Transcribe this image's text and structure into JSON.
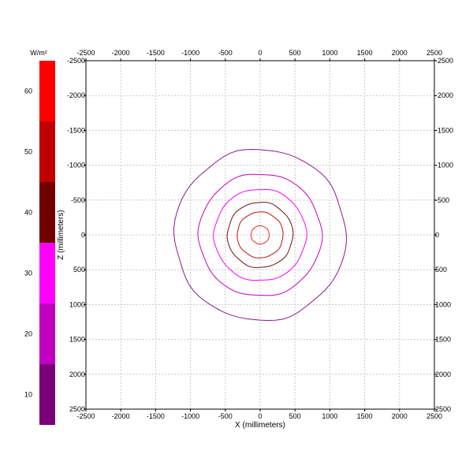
{
  "chart_data": {
    "type": "contour",
    "xlabel": "X (millimeters)",
    "ylabel": "Z (millimeters)",
    "xlim": [
      -2500,
      2500
    ],
    "ylim": [
      -2500,
      2500
    ],
    "y_axis_inverted": true,
    "x_ticks": [
      -2500,
      -2000,
      -1500,
      -1000,
      -500,
      0,
      500,
      1000,
      1500,
      2000,
      2500
    ],
    "y_ticks": [
      -2500,
      -2000,
      -1500,
      -1000,
      -500,
      0,
      500,
      1000,
      1500,
      2000,
      2500
    ],
    "x_tick_labels": [
      "-2500",
      "-2000",
      "-1500",
      "-1000",
      "-500",
      "0",
      "500",
      "1000",
      "1500",
      "2000",
      "2500"
    ],
    "y_tick_labels": [
      "-2500",
      "-2000",
      "-1500",
      "-1000",
      "-500",
      "0",
      "500",
      "1000",
      "1500",
      "2000",
      "2500"
    ],
    "grid": true,
    "center": [
      0,
      0
    ],
    "contours": [
      {
        "radius": 1230,
        "color": "#8b1a8b"
      },
      {
        "radius": 880,
        "color": "#c400c4"
      },
      {
        "radius": 660,
        "color": "#ff00ff"
      },
      {
        "radius": 470,
        "color": "#701010"
      },
      {
        "radius": 330,
        "color": "#c01010"
      },
      {
        "radius": 130,
        "color": "#ff2020"
      }
    ],
    "colorbar": {
      "units": "W/m²",
      "min": 5,
      "max": 65,
      "tick_values": [
        10,
        20,
        30,
        40,
        50,
        60
      ],
      "tick_labels": [
        "10",
        "20",
        "30",
        "40",
        "50",
        "60"
      ],
      "bands": [
        {
          "from": 5,
          "to": 15,
          "color": "#7a007a"
        },
        {
          "from": 15,
          "to": 25,
          "color": "#c000c0"
        },
        {
          "from": 25,
          "to": 35,
          "color": "#ff00ff"
        },
        {
          "from": 35,
          "to": 45,
          "color": "#700000"
        },
        {
          "from": 45,
          "to": 55,
          "color": "#c00000"
        },
        {
          "from": 55,
          "to": 65,
          "color": "#ff0000"
        }
      ]
    }
  }
}
